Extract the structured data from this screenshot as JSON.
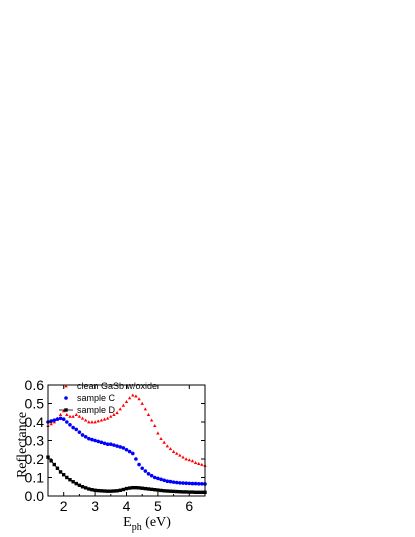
{
  "chart_data": {
    "type": "scatter",
    "xlabel_main": "E",
    "xlabel_sub": "ph",
    "xlabel_unit": " (eV)",
    "ylabel": "Reflectance",
    "xlim": [
      1.5,
      6.5
    ],
    "ylim": [
      0.0,
      0.6
    ],
    "xticks": [
      2,
      3,
      4,
      5,
      6
    ],
    "yticks": [
      0.0,
      0.1,
      0.2,
      0.3,
      0.4,
      0.5,
      0.6
    ],
    "legend_position": "top-left",
    "grid": false,
    "series": [
      {
        "name": "clean GaSb w/oxide",
        "color": "#ff0000",
        "marker": "triangle",
        "x": [
          1.5,
          1.6,
          1.7,
          1.8,
          1.9,
          2.0,
          2.1,
          2.2,
          2.3,
          2.4,
          2.5,
          2.6,
          2.7,
          2.8,
          2.9,
          3.0,
          3.1,
          3.2,
          3.3,
          3.4,
          3.5,
          3.6,
          3.7,
          3.8,
          3.9,
          4.0,
          4.1,
          4.2,
          4.3,
          4.4,
          4.5,
          4.6,
          4.7,
          4.8,
          4.9,
          5.0,
          5.1,
          5.2,
          5.3,
          5.4,
          5.5,
          5.6,
          5.7,
          5.8,
          5.9,
          6.0,
          6.1,
          6.2,
          6.3,
          6.4,
          6.5
        ],
        "y": [
          0.38,
          0.39,
          0.4,
          0.42,
          0.44,
          0.46,
          0.44,
          0.43,
          0.43,
          0.44,
          0.43,
          0.42,
          0.41,
          0.4,
          0.4,
          0.4,
          0.405,
          0.41,
          0.415,
          0.42,
          0.43,
          0.44,
          0.45,
          0.47,
          0.49,
          0.51,
          0.53,
          0.545,
          0.54,
          0.525,
          0.5,
          0.47,
          0.44,
          0.41,
          0.38,
          0.34,
          0.31,
          0.29,
          0.27,
          0.255,
          0.24,
          0.23,
          0.22,
          0.21,
          0.2,
          0.195,
          0.19,
          0.18,
          0.175,
          0.17,
          0.165
        ]
      },
      {
        "name": "sample C",
        "color": "#0000ff",
        "marker": "circle",
        "x": [
          1.5,
          1.6,
          1.7,
          1.8,
          1.9,
          2.0,
          2.1,
          2.2,
          2.3,
          2.4,
          2.5,
          2.6,
          2.7,
          2.8,
          2.9,
          3.0,
          3.1,
          3.2,
          3.3,
          3.4,
          3.5,
          3.6,
          3.7,
          3.8,
          3.9,
          4.0,
          4.1,
          4.2,
          4.3,
          4.4,
          4.5,
          4.6,
          4.7,
          4.8,
          4.9,
          5.0,
          5.1,
          5.2,
          5.3,
          5.4,
          5.5,
          5.6,
          5.7,
          5.8,
          5.9,
          6.0,
          6.1,
          6.2,
          6.3,
          6.4,
          6.5
        ],
        "y": [
          0.4,
          0.405,
          0.41,
          0.415,
          0.42,
          0.415,
          0.4,
          0.385,
          0.37,
          0.36,
          0.345,
          0.33,
          0.32,
          0.31,
          0.305,
          0.3,
          0.295,
          0.29,
          0.285,
          0.28,
          0.28,
          0.275,
          0.27,
          0.265,
          0.26,
          0.25,
          0.24,
          0.23,
          0.2,
          0.17,
          0.15,
          0.135,
          0.12,
          0.11,
          0.1,
          0.095,
          0.09,
          0.085,
          0.08,
          0.078,
          0.075,
          0.073,
          0.071,
          0.07,
          0.069,
          0.068,
          0.067,
          0.067,
          0.066,
          0.066,
          0.065
        ]
      },
      {
        "name": "sample D",
        "color": "#000000",
        "marker": "square",
        "x": [
          1.5,
          1.6,
          1.7,
          1.8,
          1.9,
          2.0,
          2.1,
          2.2,
          2.3,
          2.4,
          2.5,
          2.6,
          2.7,
          2.8,
          2.9,
          3.0,
          3.1,
          3.2,
          3.3,
          3.4,
          3.5,
          3.6,
          3.7,
          3.8,
          3.9,
          4.0,
          4.1,
          4.2,
          4.3,
          4.4,
          4.5,
          4.6,
          4.7,
          4.8,
          4.9,
          5.0,
          5.1,
          5.2,
          5.3,
          5.4,
          5.5,
          5.6,
          5.7,
          5.8,
          5.9,
          6.0,
          6.1,
          6.2,
          6.3,
          6.4,
          6.5
        ],
        "y": [
          0.21,
          0.19,
          0.17,
          0.15,
          0.13,
          0.115,
          0.1,
          0.088,
          0.077,
          0.067,
          0.058,
          0.05,
          0.044,
          0.038,
          0.034,
          0.031,
          0.029,
          0.028,
          0.027,
          0.026,
          0.026,
          0.027,
          0.028,
          0.031,
          0.035,
          0.04,
          0.043,
          0.045,
          0.045,
          0.044,
          0.042,
          0.04,
          0.038,
          0.036,
          0.034,
          0.032,
          0.03,
          0.028,
          0.027,
          0.026,
          0.025,
          0.024,
          0.023,
          0.022,
          0.022,
          0.021,
          0.021,
          0.02,
          0.02,
          0.02,
          0.02
        ]
      }
    ]
  }
}
